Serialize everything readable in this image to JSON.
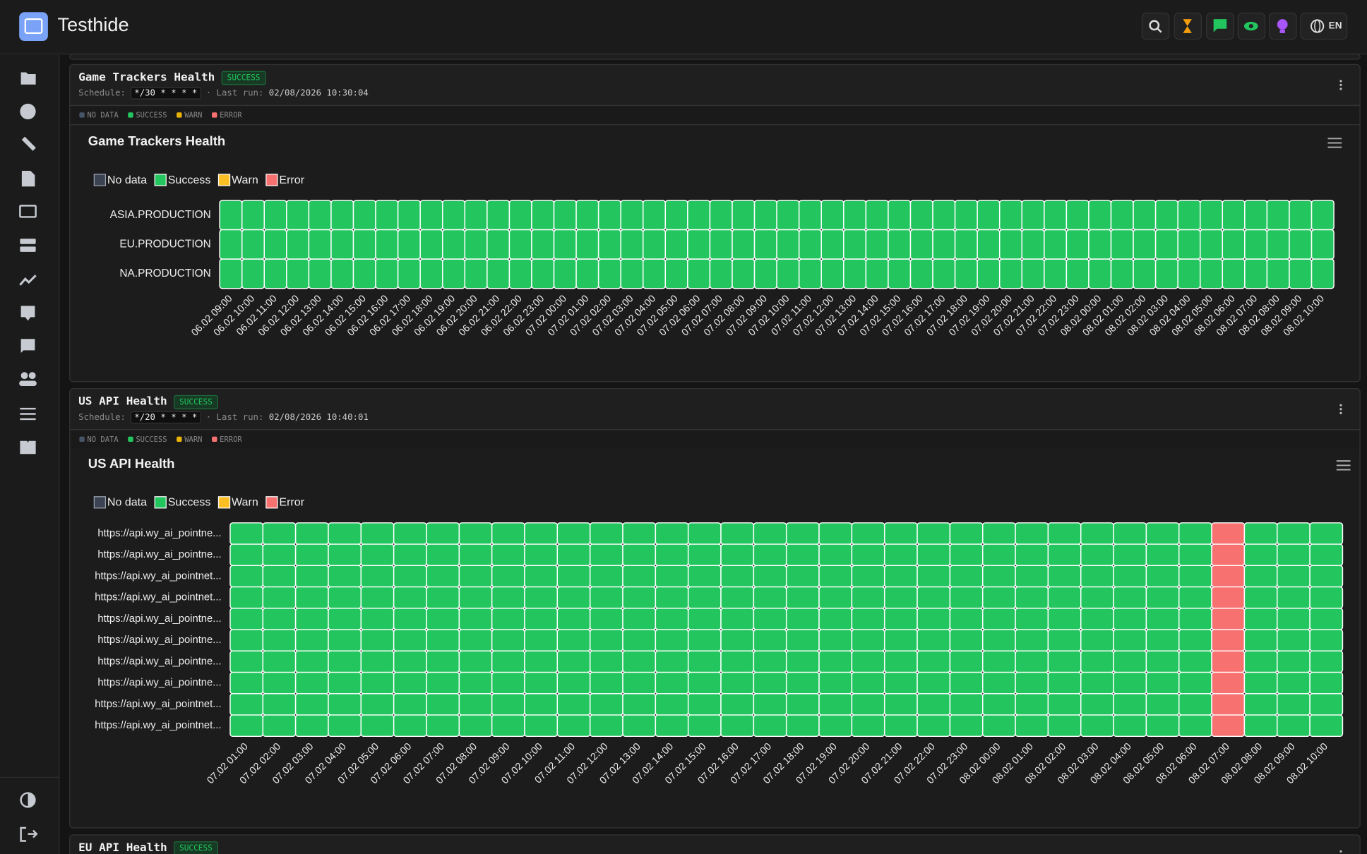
{
  "app": {
    "name": "Testhide",
    "language": "EN"
  },
  "panels": [
    {
      "title": "Game Trackers Health",
      "status": "SUCCESS",
      "schedule_label": "Schedule:",
      "schedule": "*/30 * * * *",
      "last_run_label": "· Last run:",
      "last_run": "02/08/2026 10:30:04",
      "status_legend": [
        {
          "name": "NO DATA",
          "color": "#475569"
        },
        {
          "name": "SUCCESS",
          "color": "#22c55e"
        },
        {
          "name": "WARN",
          "color": "#eab308"
        },
        {
          "name": "ERROR",
          "color": "#f87171"
        }
      ],
      "chart": {
        "type": "heatmap",
        "title": "Game Trackers Health",
        "legend": [
          {
            "name": "No data",
            "color": "#3b4252"
          },
          {
            "name": "Success",
            "color": "#22c55e"
          },
          {
            "name": "Warn",
            "color": "#fbbf24"
          },
          {
            "name": "Error",
            "color": "#f87171"
          }
        ],
        "rows": [
          "ASIA.PRODUCTION",
          "EU.PRODUCTION",
          "NA.PRODUCTION"
        ],
        "columns": [
          "06.02 09:00",
          "06.02 10:00",
          "06.02 11:00",
          "06.02 12:00",
          "06.02 13:00",
          "06.02 14:00",
          "06.02 15:00",
          "06.02 16:00",
          "06.02 17:00",
          "06.02 18:00",
          "06.02 19:00",
          "06.02 20:00",
          "06.02 21:00",
          "06.02 22:00",
          "06.02 23:00",
          "07.02 00:00",
          "07.02 01:00",
          "07.02 02:00",
          "07.02 03:00",
          "07.02 04:00",
          "07.02 05:00",
          "07.02 06:00",
          "07.02 07:00",
          "07.02 08:00",
          "07.02 09:00",
          "07.02 10:00",
          "07.02 11:00",
          "07.02 12:00",
          "07.02 13:00",
          "07.02 14:00",
          "07.02 15:00",
          "07.02 16:00",
          "07.02 17:00",
          "07.02 18:00",
          "07.02 19:00",
          "07.02 20:00",
          "07.02 21:00",
          "07.02 22:00",
          "07.02 23:00",
          "08.02 00:00",
          "08.02 01:00",
          "08.02 02:00",
          "08.02 03:00",
          "08.02 04:00",
          "08.02 05:00",
          "08.02 06:00",
          "08.02 07:00",
          "08.02 08:00",
          "08.02 09:00",
          "08.02 10:00"
        ],
        "values": [
          [
            "Success",
            "Success",
            "Success",
            "Success",
            "Success",
            "Success",
            "Success",
            "Success",
            "Success",
            "Success",
            "Success",
            "Success",
            "Success",
            "Success",
            "Success",
            "Success",
            "Success",
            "Success",
            "Success",
            "Success",
            "Success",
            "Success",
            "Success",
            "Success",
            "Success",
            "Success",
            "Success",
            "Success",
            "Success",
            "Success",
            "Success",
            "Success",
            "Success",
            "Success",
            "Success",
            "Success",
            "Success",
            "Success",
            "Success",
            "Success",
            "Success",
            "Success",
            "Success",
            "Success",
            "Success",
            "Success",
            "Success",
            "Success",
            "Success",
            "Success"
          ],
          [
            "Success",
            "Success",
            "Success",
            "Success",
            "Success",
            "Success",
            "Success",
            "Success",
            "Success",
            "Success",
            "Success",
            "Success",
            "Success",
            "Success",
            "Success",
            "Success",
            "Success",
            "Success",
            "Success",
            "Success",
            "Success",
            "Success",
            "Success",
            "Success",
            "Success",
            "Success",
            "Success",
            "Success",
            "Success",
            "Success",
            "Success",
            "Success",
            "Success",
            "Success",
            "Success",
            "Success",
            "Success",
            "Success",
            "Success",
            "Success",
            "Success",
            "Success",
            "Success",
            "Success",
            "Success",
            "Success",
            "Success",
            "Success",
            "Success",
            "Success"
          ],
          [
            "Success",
            "Success",
            "Success",
            "Success",
            "Success",
            "Success",
            "Success",
            "Success",
            "Success",
            "Success",
            "Success",
            "Success",
            "Success",
            "Success",
            "Success",
            "Success",
            "Success",
            "Success",
            "Success",
            "Success",
            "Success",
            "Success",
            "Success",
            "Success",
            "Success",
            "Success",
            "Success",
            "Success",
            "Success",
            "Success",
            "Success",
            "Success",
            "Success",
            "Success",
            "Success",
            "Success",
            "Success",
            "Success",
            "Success",
            "Success",
            "Success",
            "Success",
            "Success",
            "Success",
            "Success",
            "Success",
            "Success",
            "Success",
            "Success",
            "Success"
          ]
        ]
      }
    },
    {
      "title": "US API Health",
      "status": "SUCCESS",
      "schedule_label": "Schedule:",
      "schedule": "*/20 * * * *",
      "last_run_label": "· Last run:",
      "last_run": "02/08/2026 10:40:01",
      "status_legend": [
        {
          "name": "NO DATA",
          "color": "#475569"
        },
        {
          "name": "SUCCESS",
          "color": "#22c55e"
        },
        {
          "name": "WARN",
          "color": "#eab308"
        },
        {
          "name": "ERROR",
          "color": "#f87171"
        }
      ],
      "chart": {
        "type": "heatmap",
        "title": "US API Health",
        "legend": [
          {
            "name": "No data",
            "color": "#3b4252"
          },
          {
            "name": "Success",
            "color": "#22c55e"
          },
          {
            "name": "Warn",
            "color": "#fbbf24"
          },
          {
            "name": "Error",
            "color": "#f87171"
          }
        ],
        "rows": [
          "https://api.wy_ai_pointne...",
          "https://api.wy_ai_pointne...",
          "https://api.wy_ai_pointnet...",
          "https://api.wy_ai_pointnet...",
          "https://api.wy_ai_pointne...",
          "https://api.wy_ai_pointne...",
          "https://api.wy_ai_pointne...",
          "https://api.wy_ai_pointne...",
          "https://api.wy_ai_pointnet...",
          "https://api.wy_ai_pointnet..."
        ],
        "columns": [
          "07.02 01:00",
          "07.02 02:00",
          "07.02 03:00",
          "07.02 04:00",
          "07.02 05:00",
          "07.02 06:00",
          "07.02 07:00",
          "07.02 08:00",
          "07.02 09:00",
          "07.02 10:00",
          "07.02 11:00",
          "07.02 12:00",
          "07.02 13:00",
          "07.02 14:00",
          "07.02 15:00",
          "07.02 16:00",
          "07.02 17:00",
          "07.02 18:00",
          "07.02 19:00",
          "07.02 20:00",
          "07.02 21:00",
          "07.02 22:00",
          "07.02 23:00",
          "08.02 00:00",
          "08.02 01:00",
          "08.02 02:00",
          "08.02 03:00",
          "08.02 04:00",
          "08.02 05:00",
          "08.02 06:00",
          "08.02 07:00",
          "08.02 08:00",
          "08.02 09:00",
          "08.02 10:00"
        ],
        "values": [
          [
            "Success",
            "Success",
            "Success",
            "Success",
            "Success",
            "Success",
            "Success",
            "Success",
            "Success",
            "Success",
            "Success",
            "Success",
            "Success",
            "Success",
            "Success",
            "Success",
            "Success",
            "Success",
            "Success",
            "Success",
            "Success",
            "Success",
            "Success",
            "Success",
            "Success",
            "Success",
            "Success",
            "Success",
            "Success",
            "Success",
            "Error",
            "Success",
            "Success",
            "Success"
          ],
          [
            "Success",
            "Success",
            "Success",
            "Success",
            "Success",
            "Success",
            "Success",
            "Success",
            "Success",
            "Success",
            "Success",
            "Success",
            "Success",
            "Success",
            "Success",
            "Success",
            "Success",
            "Success",
            "Success",
            "Success",
            "Success",
            "Success",
            "Success",
            "Success",
            "Success",
            "Success",
            "Success",
            "Success",
            "Success",
            "Success",
            "Error",
            "Success",
            "Success",
            "Success"
          ],
          [
            "Success",
            "Success",
            "Success",
            "Success",
            "Success",
            "Success",
            "Success",
            "Success",
            "Success",
            "Success",
            "Success",
            "Success",
            "Success",
            "Success",
            "Success",
            "Success",
            "Success",
            "Success",
            "Success",
            "Success",
            "Success",
            "Success",
            "Success",
            "Success",
            "Success",
            "Success",
            "Success",
            "Success",
            "Success",
            "Success",
            "Error",
            "Success",
            "Success",
            "Success"
          ],
          [
            "Success",
            "Success",
            "Success",
            "Success",
            "Success",
            "Success",
            "Success",
            "Success",
            "Success",
            "Success",
            "Success",
            "Success",
            "Success",
            "Success",
            "Success",
            "Success",
            "Success",
            "Success",
            "Success",
            "Success",
            "Success",
            "Success",
            "Success",
            "Success",
            "Success",
            "Success",
            "Success",
            "Success",
            "Success",
            "Success",
            "Error",
            "Success",
            "Success",
            "Success"
          ],
          [
            "Success",
            "Success",
            "Success",
            "Success",
            "Success",
            "Success",
            "Success",
            "Success",
            "Success",
            "Success",
            "Success",
            "Success",
            "Success",
            "Success",
            "Success",
            "Success",
            "Success",
            "Success",
            "Success",
            "Success",
            "Success",
            "Success",
            "Success",
            "Success",
            "Success",
            "Success",
            "Success",
            "Success",
            "Success",
            "Success",
            "Error",
            "Success",
            "Success",
            "Success"
          ],
          [
            "Success",
            "Success",
            "Success",
            "Success",
            "Success",
            "Success",
            "Success",
            "Success",
            "Success",
            "Success",
            "Success",
            "Success",
            "Success",
            "Success",
            "Success",
            "Success",
            "Success",
            "Success",
            "Success",
            "Success",
            "Success",
            "Success",
            "Success",
            "Success",
            "Success",
            "Success",
            "Success",
            "Success",
            "Success",
            "Success",
            "Error",
            "Success",
            "Success",
            "Success"
          ],
          [
            "Success",
            "Success",
            "Success",
            "Success",
            "Success",
            "Success",
            "Success",
            "Success",
            "Success",
            "Success",
            "Success",
            "Success",
            "Success",
            "Success",
            "Success",
            "Success",
            "Success",
            "Success",
            "Success",
            "Success",
            "Success",
            "Success",
            "Success",
            "Success",
            "Success",
            "Success",
            "Success",
            "Success",
            "Success",
            "Success",
            "Error",
            "Success",
            "Success",
            "Success"
          ],
          [
            "Success",
            "Success",
            "Success",
            "Success",
            "Success",
            "Success",
            "Success",
            "Success",
            "Success",
            "Success",
            "Success",
            "Success",
            "Success",
            "Success",
            "Success",
            "Success",
            "Success",
            "Success",
            "Success",
            "Success",
            "Success",
            "Success",
            "Success",
            "Success",
            "Success",
            "Success",
            "Success",
            "Success",
            "Success",
            "Success",
            "Error",
            "Success",
            "Success",
            "Success"
          ],
          [
            "Success",
            "Success",
            "Success",
            "Success",
            "Success",
            "Success",
            "Success",
            "Success",
            "Success",
            "Success",
            "Success",
            "Success",
            "Success",
            "Success",
            "Success",
            "Success",
            "Success",
            "Success",
            "Success",
            "Success",
            "Success",
            "Success",
            "Success",
            "Success",
            "Success",
            "Success",
            "Success",
            "Success",
            "Success",
            "Success",
            "Error",
            "Success",
            "Success",
            "Success"
          ],
          [
            "Success",
            "Success",
            "Success",
            "Success",
            "Success",
            "Success",
            "Success",
            "Success",
            "Success",
            "Success",
            "Success",
            "Success",
            "Success",
            "Success",
            "Success",
            "Success",
            "Success",
            "Success",
            "Success",
            "Success",
            "Success",
            "Success",
            "Success",
            "Success",
            "Success",
            "Success",
            "Success",
            "Success",
            "Success",
            "Success",
            "Error",
            "Success",
            "Success",
            "Success"
          ]
        ]
      }
    },
    {
      "title": "EU API Health",
      "status": "SUCCESS"
    }
  ]
}
